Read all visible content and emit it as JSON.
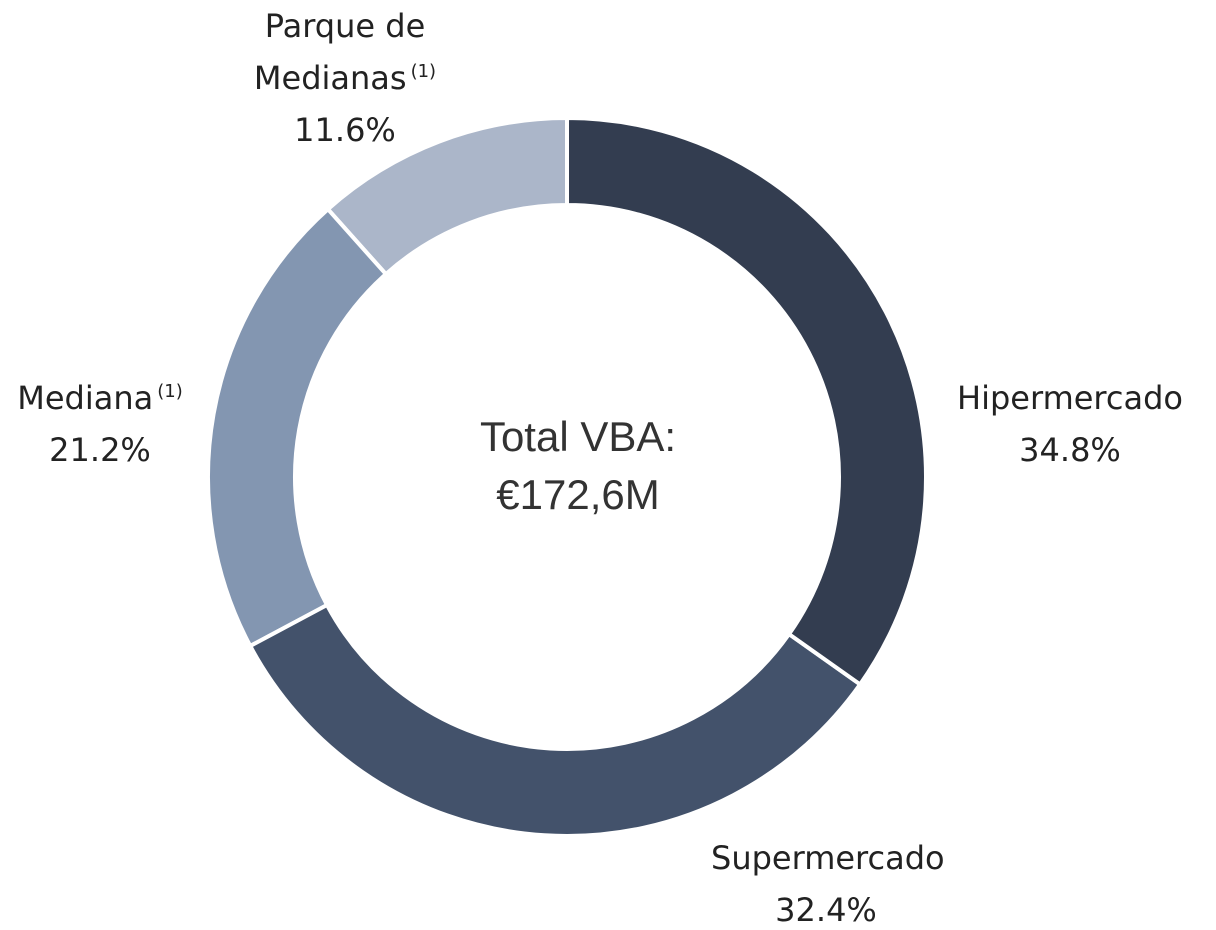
{
  "chart_data": {
    "type": "donut",
    "categories": [
      "Hipermercado",
      "Supermercado",
      "Mediana",
      "Parque de Medianas"
    ],
    "label_notes": [
      null,
      null,
      "(1)",
      "(1)"
    ],
    "values": [
      34.8,
      32.4,
      21.2,
      11.6
    ],
    "value_labels": [
      "34.8%",
      "32.4%",
      "21.2%",
      "11.6%"
    ],
    "colors": [
      "#333d50",
      "#43526b",
      "#8396b1",
      "#abb6c9"
    ],
    "center_text": [
      "Total VBA:",
      "€172,6M"
    ]
  }
}
